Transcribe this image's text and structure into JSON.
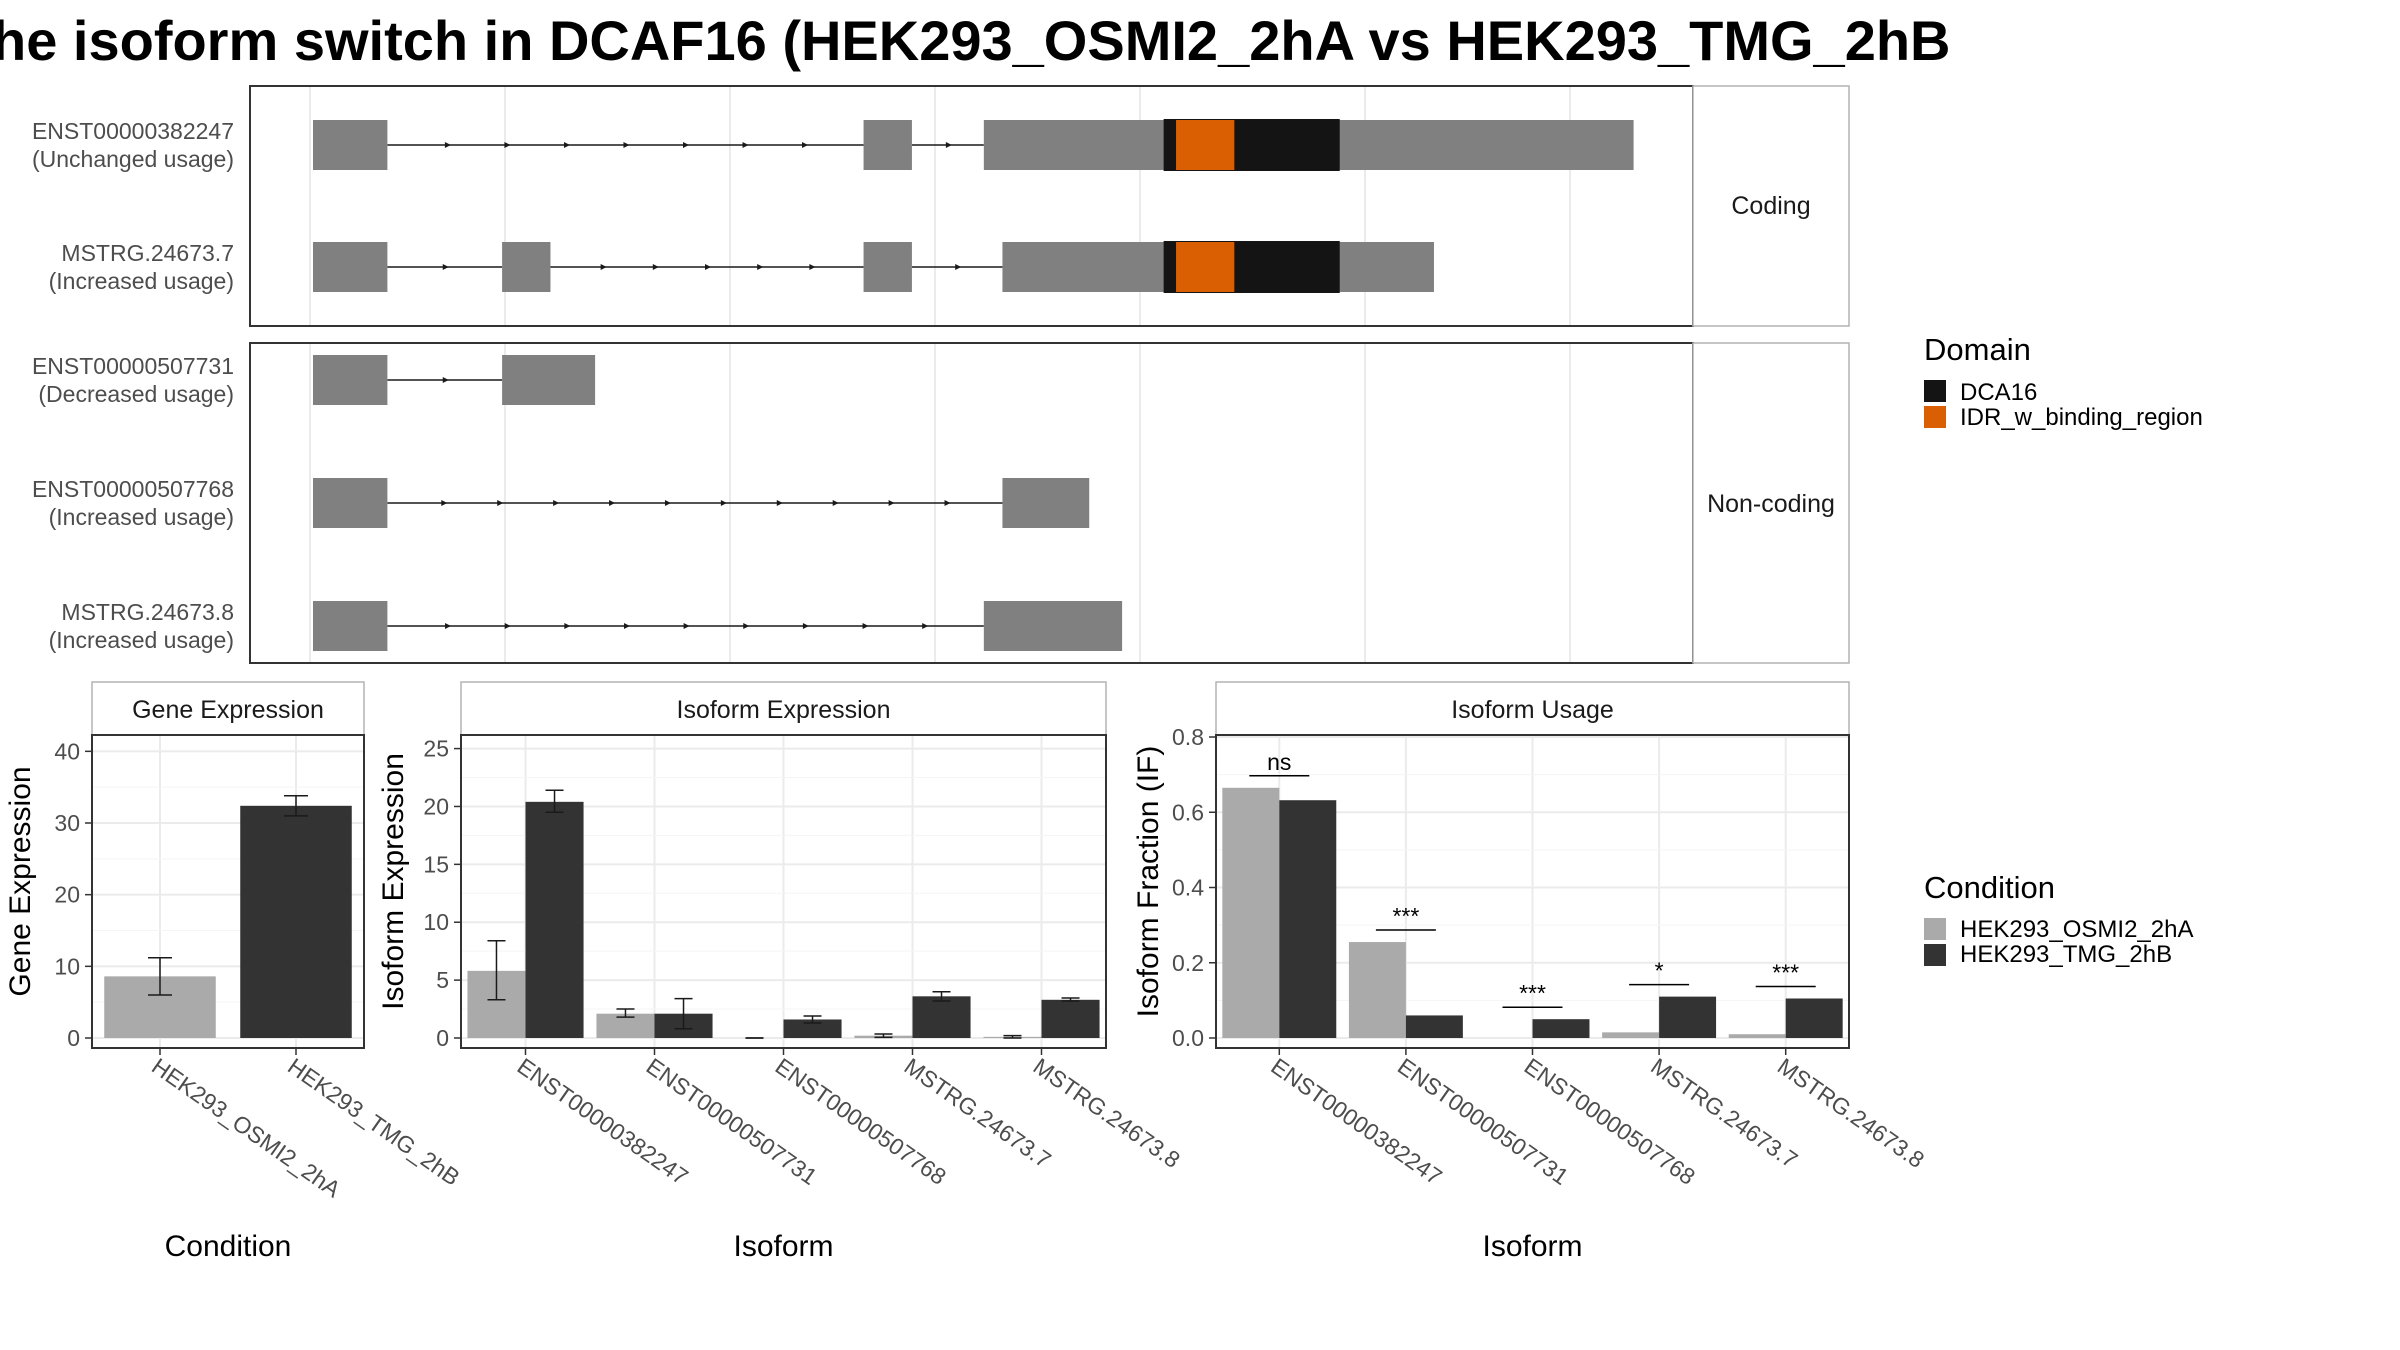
{
  "title": "he isoform switch in DCAF16 (HEK293_OSMI2_2hA vs HEK293_TMG_2hB",
  "colors": {
    "exon": "#808080",
    "domain_DCA16": "#141414",
    "domain_IDR": "#d95f02",
    "cond_a": "#aaaaaa",
    "cond_b": "#333333"
  },
  "transcripts": {
    "coding": {
      "strip": "Coding",
      "items": [
        {
          "id": "ENST00000382247",
          "usage": "(Unchanged usage)",
          "exons": [
            [
              0,
              120
            ],
            [
              888,
              966
            ],
            [
              1082,
              1408
            ],
            [
              1408,
              2130
            ]
          ],
          "domains": [
            {
              "name": "DCA16",
              "range": [
                1372,
                1656
              ]
            },
            {
              "name": "IDR_w_binding_region",
              "range": [
                1392,
                1486
              ]
            }
          ]
        },
        {
          "id": "MSTRG.24673.7",
          "usage": "(Increased usage)",
          "exons": [
            [
              0,
              120
            ],
            [
              305,
              383
            ],
            [
              888,
              966
            ],
            [
              1112,
              1408
            ],
            [
              1408,
              1808
            ]
          ],
          "domains": [
            {
              "name": "DCA16",
              "range": [
                1372,
                1656
              ]
            },
            {
              "name": "IDR_w_binding_region",
              "range": [
                1392,
                1486
              ]
            }
          ]
        }
      ]
    },
    "noncoding": {
      "strip": "Non-coding",
      "items": [
        {
          "id": "ENST00000507731",
          "usage": "(Decreased usage)",
          "exons": [
            [
              0,
              120
            ],
            [
              305,
              455
            ]
          ]
        },
        {
          "id": "ENST00000507768",
          "usage": "(Increased usage)",
          "exons": [
            [
              0,
              120
            ],
            [
              1112,
              1252
            ]
          ]
        },
        {
          "id": "MSTRG.24673.8",
          "usage": "(Increased usage)",
          "exons": [
            [
              0,
              120
            ],
            [
              1082,
              1305
            ]
          ]
        }
      ]
    }
  },
  "legend_domain": {
    "title": "Domain",
    "items": [
      {
        "label": "DCA16",
        "color": "#141414"
      },
      {
        "label": "IDR_w_binding_region",
        "color": "#d95f02"
      }
    ]
  },
  "legend_condition": {
    "title": "Condition",
    "items": [
      {
        "label": "HEK293_OSMI2_2hA",
        "color": "#aaaaaa"
      },
      {
        "label": "HEK293_TMG_2hB",
        "color": "#333333"
      }
    ]
  },
  "chart_data": [
    {
      "type": "bar",
      "strip": "Gene Expression",
      "categories": [
        "HEK293_OSMI2_2hA",
        "HEK293_TMG_2hB"
      ],
      "values": [
        8.6,
        32.4
      ],
      "errors": [
        [
          6.0,
          11.2
        ],
        [
          31.0,
          33.8
        ]
      ],
      "xlabel": "Condition",
      "ylabel": "Gene Expression",
      "ylim": [
        0,
        42
      ],
      "yticks": [
        0,
        10,
        20,
        30,
        40
      ]
    },
    {
      "type": "bar",
      "strip": "Isoform Expression",
      "categories": [
        "ENST00000382247",
        "ENST00000507731",
        "ENST00000507768",
        "MSTRG.24673.7",
        "MSTRG.24673.8"
      ],
      "series": [
        {
          "name": "HEK293_OSMI2_2hA",
          "values": [
            5.8,
            2.1,
            0.0,
            0.2,
            0.1
          ],
          "errors": [
            [
              3.3,
              8.4
            ],
            [
              1.8,
              2.5
            ],
            [
              0.0,
              0.0
            ],
            [
              0.05,
              0.35
            ],
            [
              0.0,
              0.2
            ]
          ]
        },
        {
          "name": "HEK293_TMG_2hB",
          "values": [
            20.4,
            2.1,
            1.6,
            3.6,
            3.3
          ],
          "errors": [
            [
              19.5,
              21.4
            ],
            [
              0.8,
              3.4
            ],
            [
              1.3,
              1.9
            ],
            [
              3.2,
              4.0
            ],
            [
              3.2,
              3.45
            ]
          ]
        }
      ],
      "xlabel": "Isoform",
      "ylabel": "Isoform Expression",
      "ylim": [
        0,
        26
      ],
      "yticks": [
        0,
        5,
        10,
        15,
        20,
        25
      ]
    },
    {
      "type": "bar",
      "strip": "Isoform Usage",
      "categories": [
        "ENST00000382247",
        "ENST00000507731",
        "ENST00000507768",
        "MSTRG.24673.7",
        "MSTRG.24673.8"
      ],
      "series": [
        {
          "name": "HEK293_OSMI2_2hA",
          "values": [
            0.665,
            0.255,
            0.0,
            0.015,
            0.01
          ]
        },
        {
          "name": "HEK293_TMG_2hB",
          "values": [
            0.632,
            0.06,
            0.05,
            0.11,
            0.105
          ]
        }
      ],
      "significance": [
        "ns",
        "***",
        "***",
        "*",
        "***"
      ],
      "xlabel": "Isoform",
      "ylabel": "Isoform Fraction (IF)",
      "ylim": [
        0,
        0.8
      ],
      "yticks": [
        0.0,
        0.2,
        0.4,
        0.6,
        0.8
      ]
    }
  ]
}
